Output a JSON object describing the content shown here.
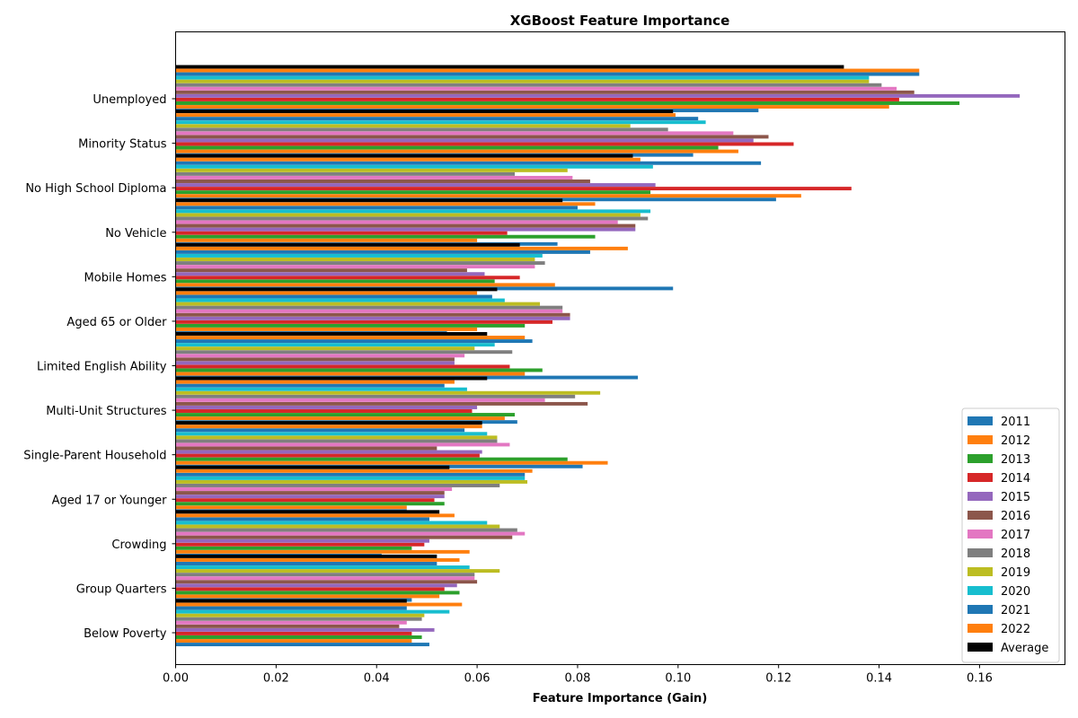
{
  "chart_data": {
    "type": "bar",
    "orientation": "horizontal",
    "title": "XGBoost Feature Importance",
    "xlabel": "Feature Importance (Gain)",
    "ylabel": "",
    "xlim": [
      0.0,
      0.177
    ],
    "xticks": [
      "0.00",
      "0.02",
      "0.04",
      "0.06",
      "0.08",
      "0.10",
      "0.12",
      "0.14",
      "0.16"
    ],
    "grid": false,
    "legend_position": "lower-right",
    "categories": [
      "Below Poverty",
      "Group Quarters",
      "Crowding",
      "Aged 17 or Younger",
      "Single-Parent Household",
      "Multi-Unit Structures",
      "Limited English Ability",
      "Aged 65 or Older",
      "Mobile Homes",
      "No Vehicle",
      "No High School Diploma",
      "Minority Status",
      "Unemployed"
    ],
    "series": [
      {
        "name": "2011",
        "color": "#1f77b4",
        "values": [
          0.0505,
          0.047,
          0.041,
          0.046,
          0.081,
          0.068,
          0.092,
          0.054,
          0.099,
          0.076,
          0.1195,
          0.103,
          0.116
        ]
      },
      {
        "name": "2012",
        "color": "#ff7f0e",
        "values": [
          0.047,
          0.0525,
          0.0585,
          0.046,
          0.086,
          0.0655,
          0.0695,
          0.06,
          0.0755,
          0.06,
          0.1245,
          0.112,
          0.142
        ]
      },
      {
        "name": "2013",
        "color": "#2ca02c",
        "values": [
          0.049,
          0.0565,
          0.047,
          0.0535,
          0.078,
          0.0675,
          0.073,
          0.0695,
          0.0635,
          0.0835,
          0.0945,
          0.108,
          0.156
        ]
      },
      {
        "name": "2014",
        "color": "#d62728",
        "values": [
          0.047,
          0.0535,
          0.0495,
          0.0515,
          0.0605,
          0.059,
          0.0665,
          0.075,
          0.0685,
          0.066,
          0.1345,
          0.123,
          0.144
        ]
      },
      {
        "name": "2015",
        "color": "#9467bd",
        "values": [
          0.0515,
          0.056,
          0.0505,
          0.0535,
          0.061,
          0.06,
          0.0555,
          0.0785,
          0.0615,
          0.0915,
          0.0955,
          0.115,
          0.168
        ]
      },
      {
        "name": "2016",
        "color": "#8c564b",
        "values": [
          0.0445,
          0.06,
          0.067,
          0.0535,
          0.052,
          0.082,
          0.0555,
          0.0785,
          0.058,
          0.0915,
          0.0825,
          0.118,
          0.147
        ]
      },
      {
        "name": "2017",
        "color": "#e377c2",
        "values": [
          0.046,
          0.0595,
          0.0695,
          0.055,
          0.0665,
          0.0735,
          0.0575,
          0.077,
          0.0715,
          0.088,
          0.079,
          0.111,
          0.1435
        ]
      },
      {
        "name": "2018",
        "color": "#7f7f7f",
        "values": [
          0.049,
          0.0595,
          0.068,
          0.0645,
          0.064,
          0.0795,
          0.067,
          0.077,
          0.0735,
          0.094,
          0.0675,
          0.098,
          0.1405
        ]
      },
      {
        "name": "2019",
        "color": "#bcbd22",
        "values": [
          0.0495,
          0.0645,
          0.0645,
          0.07,
          0.064,
          0.0845,
          0.0595,
          0.0725,
          0.0715,
          0.0925,
          0.078,
          0.0905,
          0.138
        ]
      },
      {
        "name": "2020",
        "color": "#17becf",
        "values": [
          0.0545,
          0.0585,
          0.062,
          0.0695,
          0.062,
          0.058,
          0.0635,
          0.0655,
          0.073,
          0.0945,
          0.095,
          0.1055,
          0.138
        ]
      },
      {
        "name": "2021",
        "color": "#1f77b4",
        "values": [
          0.046,
          0.052,
          0.0505,
          0.0695,
          0.0575,
          0.0535,
          0.071,
          0.063,
          0.0825,
          0.08,
          0.1165,
          0.104,
          0.148
        ]
      },
      {
        "name": "2022",
        "color": "#ff7f0e",
        "values": [
          0.057,
          0.0565,
          0.0555,
          0.071,
          0.061,
          0.0555,
          0.0695,
          0.06,
          0.09,
          0.0835,
          0.0925,
          0.0995,
          0.148
        ]
      },
      {
        "name": "Average",
        "color": "#000000",
        "values": [
          0.046,
          0.052,
          0.0525,
          0.0545,
          0.061,
          0.062,
          0.062,
          0.064,
          0.0685,
          0.077,
          0.091,
          0.099,
          0.133
        ]
      }
    ]
  }
}
